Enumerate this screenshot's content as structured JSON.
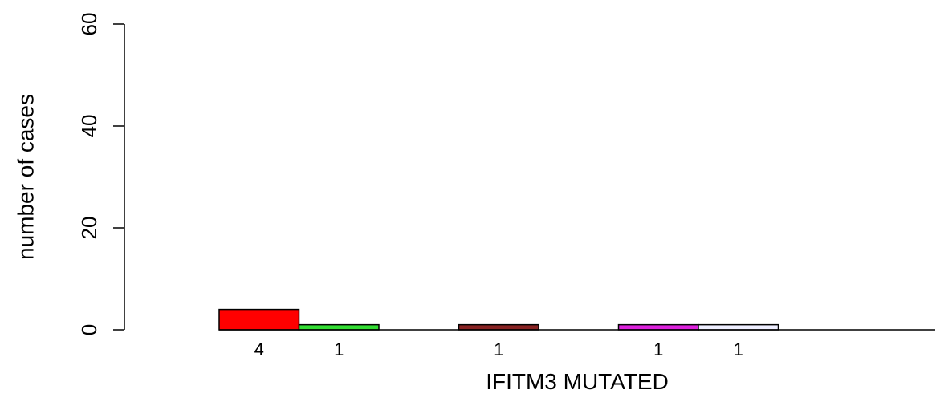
{
  "chart_data": {
    "type": "bar",
    "title": "",
    "xlabel": "IFITM3 MUTATED",
    "ylabel": "number of cases",
    "ylim": [
      0,
      60
    ],
    "yticks": [
      "0",
      "20",
      "40",
      "60"
    ],
    "grid": false,
    "legend": "none",
    "bars": [
      {
        "value": 4,
        "label": "4",
        "color": "#ff0000"
      },
      {
        "value": 1,
        "label": "1",
        "color": "#33dd33"
      },
      {
        "value": 0,
        "label": "",
        "color": "#333399"
      },
      {
        "value": 1,
        "label": "1",
        "color": "#882222"
      },
      {
        "value": 0,
        "label": "",
        "color": "#dddd22"
      },
      {
        "value": 1,
        "label": "1",
        "color": "#dd22dd"
      },
      {
        "value": 1,
        "label": "1",
        "color": "#eeeeff"
      },
      {
        "value": 0,
        "label": "",
        "color": "#22dddd"
      },
      {
        "value": 0,
        "label": "",
        "color": "#dddddd"
      }
    ]
  }
}
